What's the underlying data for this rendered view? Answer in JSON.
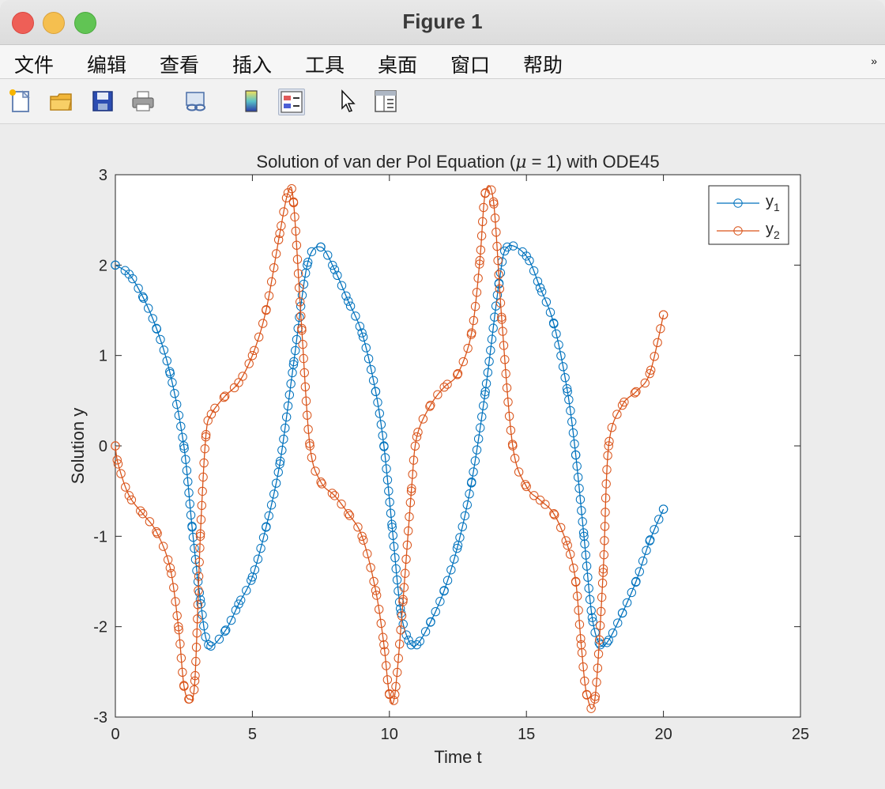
{
  "window": {
    "title": "Figure 1"
  },
  "menu": {
    "items": [
      "文件",
      "编辑",
      "查看",
      "插入",
      "工具",
      "桌面",
      "窗口",
      "帮助"
    ],
    "overflow_icon": "double-chevron-icon"
  },
  "toolbar": {
    "tools": [
      {
        "name": "new-figure-icon",
        "active": false
      },
      {
        "name": "open-file-icon",
        "active": false
      },
      {
        "name": "save-icon",
        "active": false
      },
      {
        "name": "print-icon",
        "active": false
      },
      {
        "name": "link-plot-icon",
        "active": false
      },
      {
        "name": "colorbar-icon",
        "active": false
      },
      {
        "name": "legend-icon",
        "active": true
      },
      {
        "name": "pointer-icon",
        "active": false
      },
      {
        "name": "property-editor-icon",
        "active": false
      }
    ]
  },
  "colors": {
    "series1": "#0072BD",
    "series2": "#D95319",
    "background": "#ececec",
    "axes": "#ffffff"
  },
  "chart_data": {
    "type": "line",
    "title": "Solution of van der Pol Equation (μ = 1) with ODE45",
    "title_parts": [
      "Solution of van der Pol Equation (",
      "μ",
      " = 1) with ODE45"
    ],
    "xlabel": "Time t",
    "ylabel": "Solution y",
    "xlim": [
      0,
      25
    ],
    "ylim": [
      -3,
      3
    ],
    "xticks": [
      0,
      5,
      10,
      15,
      20,
      25
    ],
    "yticks": [
      -3,
      -2,
      -1,
      0,
      1,
      2,
      3
    ],
    "xtick_labels": [
      "0",
      "5",
      "10",
      "15",
      "20",
      "25"
    ],
    "ytick_labels": [
      "-3",
      "-2",
      "-1",
      "0",
      "1",
      "2",
      "3"
    ],
    "grid": false,
    "legend_position": "top-right",
    "marker": "circle",
    "series": [
      {
        "name": "y1",
        "label_base": "y",
        "label_sub": "1",
        "x": [
          0,
          0.5,
          1,
          1.5,
          2,
          2.5,
          2.8,
          3.1,
          3.4,
          4,
          4.5,
          5,
          5.5,
          6,
          6.5,
          7,
          7.5,
          8,
          8.5,
          9,
          9.5,
          9.8,
          10.1,
          10.4,
          10.7,
          11,
          11.5,
          12,
          12.5,
          13,
          13.5,
          14,
          14.3,
          15,
          15.5,
          16,
          16.5,
          16.8,
          17.1,
          17.4,
          17.7,
          18,
          18.5,
          19,
          19.5,
          20
        ],
        "y": [
          2.0,
          1.9,
          1.65,
          1.3,
          0.8,
          0.0,
          -0.9,
          -1.7,
          -2.2,
          -2.05,
          -1.75,
          -1.45,
          -0.9,
          -0.2,
          0.9,
          2.0,
          2.2,
          1.95,
          1.6,
          1.25,
          0.6,
          0.0,
          -0.9,
          -1.8,
          -2.15,
          -2.2,
          -1.95,
          -1.6,
          -1.1,
          -0.4,
          0.6,
          1.8,
          2.2,
          2.1,
          1.75,
          1.35,
          0.6,
          -0.1,
          -1.0,
          -1.9,
          -2.2,
          -2.15,
          -1.85,
          -1.5,
          -1.05,
          -0.7
        ]
      },
      {
        "name": "y2",
        "label_base": "y",
        "label_sub": "2",
        "x": [
          0,
          0.1,
          0.5,
          1,
          1.5,
          2,
          2.3,
          2.5,
          2.7,
          2.9,
          3.1,
          3.3,
          3.5,
          4,
          4.5,
          5,
          5.5,
          6,
          6.3,
          6.5,
          6.8,
          7.1,
          7.5,
          8,
          8.5,
          9,
          9.5,
          9.8,
          10.0,
          10.2,
          10.5,
          10.8,
          11,
          11.5,
          12,
          12.5,
          13,
          13.3,
          13.5,
          13.8,
          14.1,
          14.5,
          15,
          15.5,
          16,
          16.5,
          16.8,
          17.0,
          17.2,
          17.5,
          17.8,
          18,
          18.5,
          19,
          19.5,
          20
        ],
        "y": [
          0.0,
          -0.2,
          -0.55,
          -0.75,
          -0.95,
          -1.35,
          -2.0,
          -2.65,
          -2.8,
          -2.6,
          -1.0,
          0.1,
          0.35,
          0.55,
          0.7,
          1.0,
          1.5,
          2.35,
          2.8,
          2.7,
          1.3,
          0.0,
          -0.4,
          -0.55,
          -0.75,
          -1.0,
          -1.6,
          -2.2,
          -2.75,
          -2.75,
          -1.7,
          -0.5,
          0.1,
          0.45,
          0.65,
          0.8,
          1.25,
          2.05,
          2.8,
          2.7,
          1.4,
          0.0,
          -0.45,
          -0.6,
          -0.75,
          -1.1,
          -1.5,
          -2.2,
          -2.75,
          -2.8,
          -1.4,
          0.0,
          0.45,
          0.6,
          0.8,
          1.45
        ]
      }
    ]
  }
}
